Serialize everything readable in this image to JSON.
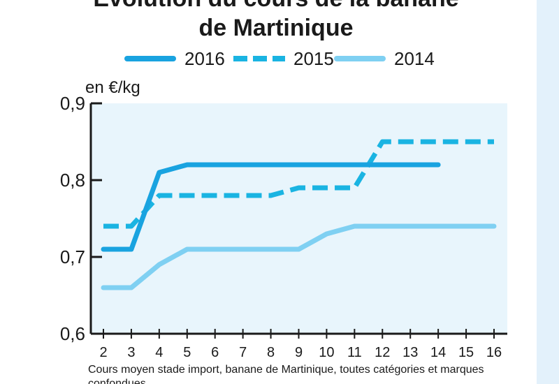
{
  "chart_data": {
    "type": "line",
    "title_line1": "Évolution du cours de la banane",
    "title_line2": "de Martinique",
    "ylabel": "en €/kg",
    "ylim": [
      0.6,
      0.9
    ],
    "yticks": [
      "0,6",
      "0,7",
      "0,8",
      "0,9"
    ],
    "xticks": [
      "2",
      "3",
      "4",
      "5",
      "6",
      "7",
      "8",
      "9",
      "10",
      "11",
      "12",
      "13",
      "14",
      "15",
      "16"
    ],
    "grid": false,
    "legend_position": "top",
    "series": [
      {
        "name": "2016",
        "style": "solid",
        "color": "#19a3e0",
        "x": [
          2,
          3,
          4,
          5,
          6,
          7,
          8,
          9,
          10,
          11,
          12,
          13,
          14
        ],
        "values": [
          0.71,
          0.71,
          0.81,
          0.82,
          0.82,
          0.82,
          0.82,
          0.82,
          0.82,
          0.82,
          0.82,
          0.82,
          0.82
        ]
      },
      {
        "name": "2015",
        "style": "dashed",
        "color": "#1ab4e2",
        "x": [
          2,
          3,
          4,
          5,
          6,
          7,
          8,
          9,
          10,
          11,
          12,
          13,
          14,
          15,
          16
        ],
        "values": [
          0.74,
          0.74,
          0.78,
          0.78,
          0.78,
          0.78,
          0.78,
          0.79,
          0.79,
          0.79,
          0.85,
          0.85,
          0.85,
          0.85,
          0.85
        ]
      },
      {
        "name": "2014",
        "style": "solid",
        "color": "#7fd0f2",
        "x": [
          2,
          3,
          4,
          5,
          6,
          7,
          8,
          9,
          10,
          11,
          12,
          13,
          14,
          15,
          16
        ],
        "values": [
          0.66,
          0.66,
          0.69,
          0.71,
          0.71,
          0.71,
          0.71,
          0.71,
          0.73,
          0.74,
          0.74,
          0.74,
          0.74,
          0.74,
          0.74
        ]
      }
    ],
    "footnote": "Cours moyen stade import, banane de Martinique, toutes catégories et marques confondues"
  }
}
